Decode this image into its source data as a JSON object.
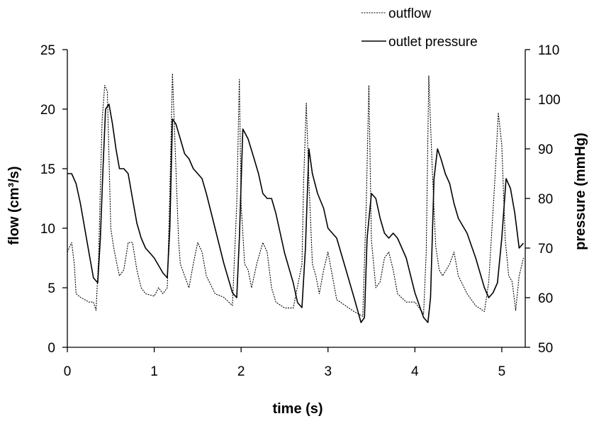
{
  "chart_data": {
    "type": "line",
    "xlabel": "time (s)",
    "ylabel": "flow (cm³/s)",
    "y2label": "pressure (mmHg)",
    "xlim": [
      0,
      5.27
    ],
    "ylim": [
      0,
      25
    ],
    "y2lim": [
      50,
      110
    ],
    "x_ticks": [
      "0",
      "1",
      "2",
      "3",
      "4",
      "5"
    ],
    "y_ticks": [
      "0",
      "5",
      "10",
      "15",
      "20",
      "25"
    ],
    "y2_ticks": [
      "50",
      "60",
      "70",
      "80",
      "90",
      "100",
      "110"
    ],
    "grid": false,
    "legend_position": "top-right",
    "series": [
      {
        "name": "outflow",
        "axis": "left",
        "style": "dotted",
        "color": "#000000",
        "x": [
          0.0,
          0.03,
          0.05,
          0.08,
          0.1,
          0.15,
          0.2,
          0.25,
          0.3,
          0.33,
          0.36,
          0.4,
          0.43,
          0.46,
          0.5,
          0.53,
          0.57,
          0.6,
          0.65,
          0.7,
          0.75,
          0.8,
          0.85,
          0.9,
          1.0,
          1.05,
          1.1,
          1.15,
          1.18,
          1.21,
          1.25,
          1.28,
          1.3,
          1.35,
          1.4,
          1.45,
          1.5,
          1.55,
          1.6,
          1.7,
          1.8,
          1.9,
          1.95,
          1.98,
          2.0,
          2.04,
          2.08,
          2.12,
          2.18,
          2.25,
          2.3,
          2.35,
          2.4,
          2.5,
          2.6,
          2.7,
          2.72,
          2.75,
          2.78,
          2.82,
          2.86,
          2.9,
          2.95,
          3.0,
          3.05,
          3.1,
          3.2,
          3.3,
          3.4,
          3.44,
          3.47,
          3.5,
          3.55,
          3.6,
          3.65,
          3.7,
          3.75,
          3.8,
          3.9,
          4.0,
          4.1,
          4.13,
          4.16,
          4.2,
          4.24,
          4.28,
          4.32,
          4.4,
          4.45,
          4.5,
          4.6,
          4.7,
          4.8,
          4.85,
          4.92,
          4.96,
          5.0,
          5.04,
          5.08,
          5.12,
          5.16,
          5.2,
          5.25
        ],
        "values": [
          8.0,
          8.5,
          8.8,
          7.0,
          4.5,
          4.2,
          4.0,
          3.8,
          3.8,
          3.1,
          7.5,
          19.0,
          22.0,
          21.5,
          10.0,
          8.5,
          7.0,
          6.0,
          6.5,
          8.8,
          8.8,
          6.5,
          5.0,
          4.5,
          4.3,
          5.0,
          4.5,
          5.0,
          13.0,
          23.0,
          15.0,
          9.0,
          7.0,
          6.0,
          5.0,
          7.0,
          8.8,
          8.0,
          6.0,
          4.5,
          4.2,
          3.5,
          12.0,
          22.5,
          12.0,
          7.0,
          6.5,
          5.0,
          7.0,
          8.8,
          8.0,
          5.0,
          3.8,
          3.3,
          3.3,
          7.0,
          14.0,
          20.5,
          14.0,
          7.0,
          6.0,
          4.5,
          6.5,
          8.0,
          6.0,
          4.0,
          3.5,
          3.0,
          2.6,
          12.0,
          22.0,
          9.0,
          5.0,
          5.5,
          7.5,
          8.0,
          6.5,
          4.5,
          3.8,
          3.8,
          2.8,
          8.0,
          22.8,
          15.0,
          8.5,
          6.5,
          6.0,
          7.0,
          8.0,
          6.0,
          4.5,
          3.5,
          3.0,
          5.5,
          14.0,
          19.7,
          17.0,
          9.0,
          6.0,
          5.5,
          3.1,
          6.0,
          7.5
        ]
      },
      {
        "name": "outlet pressure",
        "axis": "right",
        "style": "solid",
        "color": "#000000",
        "x": [
          0.0,
          0.05,
          0.1,
          0.15,
          0.2,
          0.25,
          0.3,
          0.35,
          0.38,
          0.41,
          0.44,
          0.48,
          0.52,
          0.56,
          0.6,
          0.65,
          0.7,
          0.75,
          0.8,
          0.85,
          0.9,
          0.95,
          1.0,
          1.05,
          1.1,
          1.15,
          1.18,
          1.21,
          1.25,
          1.3,
          1.35,
          1.4,
          1.45,
          1.5,
          1.55,
          1.6,
          1.7,
          1.8,
          1.9,
          1.95,
          1.98,
          2.02,
          2.08,
          2.15,
          2.2,
          2.25,
          2.3,
          2.35,
          2.4,
          2.5,
          2.6,
          2.65,
          2.7,
          2.74,
          2.78,
          2.82,
          2.88,
          2.95,
          3.0,
          3.05,
          3.1,
          3.2,
          3.3,
          3.38,
          3.42,
          3.45,
          3.5,
          3.55,
          3.6,
          3.65,
          3.7,
          3.75,
          3.8,
          3.9,
          4.0,
          4.1,
          4.15,
          4.18,
          4.22,
          4.26,
          4.3,
          4.35,
          4.4,
          4.45,
          4.5,
          4.6,
          4.7,
          4.8,
          4.85,
          4.9,
          4.95,
          5.0,
          5.05,
          5.1,
          5.15,
          5.2,
          5.25
        ],
        "values": [
          85.0,
          85.0,
          83.0,
          79.0,
          74.0,
          69.0,
          64.0,
          63.0,
          72.0,
          86.0,
          98.0,
          99.0,
          95.0,
          90.0,
          86.0,
          86.0,
          85.0,
          80.0,
          75.0,
          72.0,
          70.0,
          69.0,
          68.0,
          66.5,
          65.0,
          64.0,
          74.0,
          96.0,
          95.0,
          92.0,
          89.0,
          88.0,
          86.0,
          85.0,
          84.0,
          81.0,
          74.0,
          67.0,
          61.0,
          60.0,
          72.0,
          94.0,
          92.0,
          88.0,
          85.0,
          81.0,
          80.0,
          80.0,
          77.0,
          69.0,
          63.0,
          59.0,
          58.0,
          70.0,
          90.0,
          85.0,
          81.0,
          78.0,
          74.0,
          73.0,
          72.0,
          66.0,
          60.0,
          55.0,
          56.0,
          72.0,
          81.0,
          80.0,
          76.0,
          73.0,
          72.0,
          73.0,
          72.0,
          68.0,
          61.0,
          56.0,
          55.0,
          60.0,
          84.0,
          90.0,
          88.0,
          85.0,
          83.0,
          79.0,
          76.0,
          73.0,
          68.0,
          62.0,
          60.0,
          61.0,
          63.0,
          72.0,
          84.0,
          82.0,
          77.0,
          70.0,
          71.0
        ]
      }
    ]
  }
}
